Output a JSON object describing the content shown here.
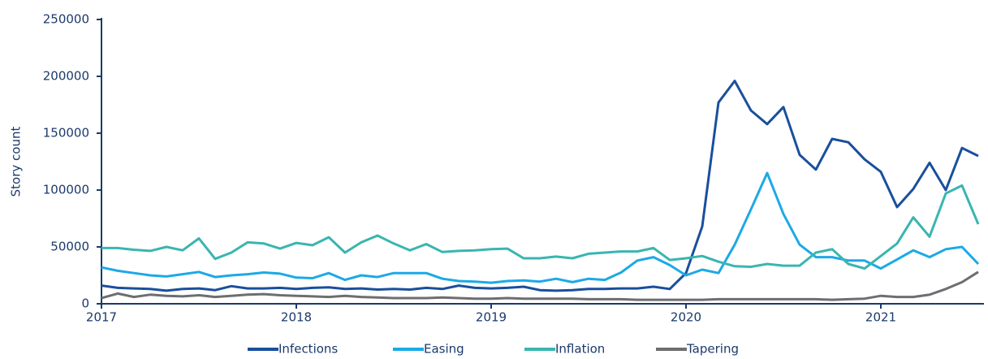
{
  "chart_data": {
    "type": "line",
    "y_label": "Story count",
    "categories": [
      "2017",
      null,
      null,
      null,
      null,
      null,
      null,
      null,
      null,
      null,
      null,
      null,
      "2018",
      null,
      null,
      null,
      null,
      null,
      null,
      null,
      null,
      null,
      null,
      null,
      "2019",
      null,
      null,
      null,
      null,
      null,
      null,
      null,
      null,
      null,
      null,
      null,
      "2020",
      null,
      null,
      null,
      null,
      null,
      null,
      null,
      null,
      null,
      null,
      null,
      "2021",
      null,
      null,
      null,
      null,
      null,
      null
    ],
    "series": [
      {
        "name": "Infections",
        "color": "#1a4f9c",
        "values": [
          16000,
          14000,
          13500,
          13000,
          11500,
          13000,
          13500,
          12000,
          15500,
          13500,
          13500,
          14000,
          13000,
          14000,
          14500,
          13000,
          13500,
          12500,
          13000,
          12500,
          14000,
          13000,
          16000,
          14000,
          13500,
          14000,
          15000,
          12000,
          11500,
          12000,
          13000,
          13000,
          13500,
          13500,
          15000,
          13000,
          27000,
          68000,
          177000,
          196000,
          170000,
          158000,
          173000,
          131000,
          118000,
          145000,
          142000,
          127000,
          116000,
          85000,
          101000,
          124000,
          100000,
          137000,
          130000
        ]
      },
      {
        "name": "Easing",
        "color": "#1ca9e6",
        "values": [
          32000,
          29000,
          27000,
          25000,
          24000,
          26000,
          28000,
          23500,
          25000,
          26000,
          27500,
          26500,
          23000,
          22500,
          27000,
          21000,
          25000,
          23500,
          27000,
          27000,
          27000,
          22000,
          20000,
          19500,
          18500,
          20000,
          20500,
          19500,
          22000,
          19000,
          22000,
          21000,
          27500,
          38000,
          41000,
          34000,
          25000,
          30000,
          27000,
          52000,
          83000,
          115000,
          79000,
          52000,
          41000,
          41000,
          38000,
          38000,
          31000,
          39000,
          47000,
          41000,
          48000,
          50000,
          35000
        ]
      },
      {
        "name": "Inflation",
        "color": "#3ab5b0",
        "values": [
          49000,
          49000,
          47500,
          46500,
          50000,
          47000,
          57500,
          39500,
          45000,
          54000,
          53000,
          48500,
          53500,
          51500,
          58500,
          45000,
          54000,
          60000,
          53000,
          47000,
          52500,
          45500,
          46500,
          47000,
          48000,
          48500,
          40000,
          40000,
          41500,
          40000,
          44000,
          45000,
          46000,
          46000,
          49000,
          38500,
          40000,
          42000,
          37000,
          33000,
          32500,
          35000,
          33500,
          33500,
          45000,
          48000,
          35000,
          31000,
          42000,
          53000,
          76000,
          59000,
          97000,
          104000,
          70000
        ]
      },
      {
        "name": "Tapering",
        "color": "#6d6e70",
        "values": [
          5000,
          9000,
          6000,
          8000,
          7000,
          6500,
          7500,
          6000,
          7000,
          8000,
          8500,
          7500,
          7000,
          6500,
          6000,
          7000,
          6000,
          5500,
          5000,
          5000,
          5000,
          5500,
          5000,
          4500,
          4500,
          5000,
          4500,
          4500,
          4500,
          4500,
          4000,
          4000,
          4000,
          3500,
          3500,
          3500,
          3500,
          3500,
          4000,
          4000,
          4000,
          4000,
          4000,
          4000,
          4000,
          3500,
          4000,
          4500,
          7000,
          6000,
          6000,
          8000,
          13000,
          19000,
          28000
        ]
      }
    ],
    "ylim": [
      0,
      250000
    ],
    "yticks": [
      0,
      50000,
      100000,
      150000,
      200000,
      250000
    ],
    "legend": "bottom"
  }
}
